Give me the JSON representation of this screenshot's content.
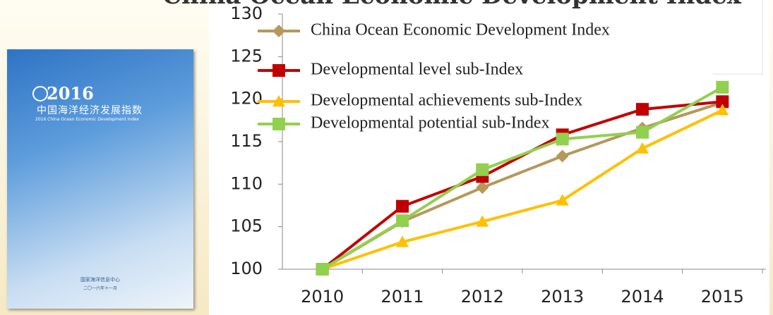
{
  "cover": {
    "year": "2016",
    "title_cn": "中国海洋经济发展指数",
    "title_en": "2016 China Ocean Economic Development Index",
    "org": "国家海洋信息中心",
    "date": "二〇一六年十一月"
  },
  "chart_data": {
    "type": "line",
    "title": "China Ocean Economic Development Index",
    "categories": [
      "2010",
      "2011",
      "2012",
      "2013",
      "2014",
      "2015"
    ],
    "series": [
      {
        "name": "China Ocean Economic Development Index",
        "color": "#b5985a",
        "marker": "diamond",
        "values": [
          100,
          105.6,
          109.6,
          113.3,
          116.6,
          119.6
        ]
      },
      {
        "name": "Developmental level sub-Index",
        "color": "#c00000",
        "marker": "square",
        "values": [
          100,
          107.4,
          110.9,
          115.8,
          118.8,
          119.7
        ]
      },
      {
        "name": "Developmental achievements sub-Index",
        "color": "#ffc000",
        "marker": "triangle",
        "values": [
          100,
          103.2,
          105.6,
          108.1,
          114.2,
          118.7
        ]
      },
      {
        "name": "Developmental potential sub-Index",
        "color": "#92d050",
        "marker": "square",
        "values": [
          100,
          105.7,
          111.7,
          115.3,
          116.1,
          121.4
        ]
      }
    ],
    "ylim": [
      100,
      130
    ],
    "yticks": [
      100,
      105,
      110,
      115,
      120,
      125,
      130
    ],
    "legend": "top-left"
  }
}
